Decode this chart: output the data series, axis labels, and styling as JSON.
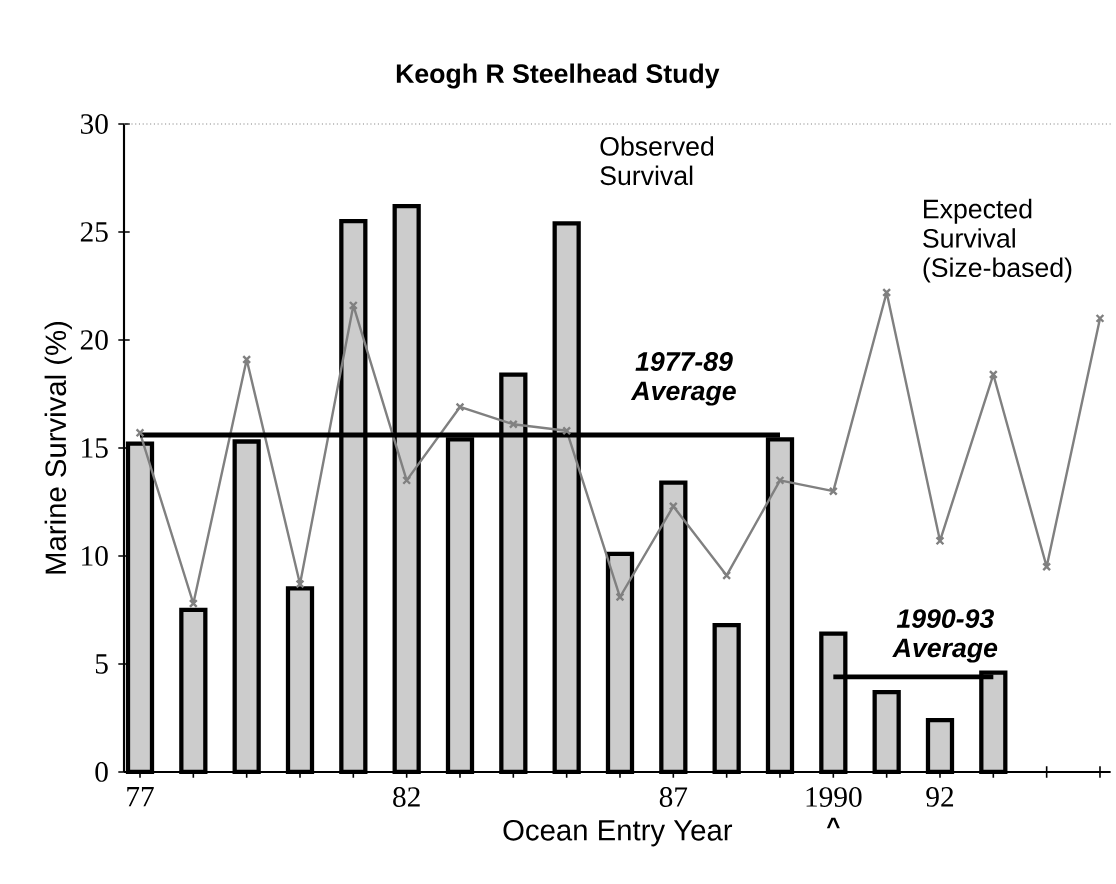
{
  "chart_data": {
    "type": "bar",
    "title": "Keogh R Steelhead Study",
    "xlabel": "Ocean Entry Year",
    "ylabel": "Marine Survival (%)",
    "categories": [
      "77",
      null,
      null,
      null,
      null,
      "82",
      null,
      null,
      null,
      null,
      "87",
      null,
      null,
      "1990",
      null,
      "92",
      null,
      null,
      null
    ],
    "series": [
      {
        "name": "Observed Survival",
        "color": "#cccccc",
        "values": [
          15.2,
          7.5,
          15.3,
          8.5,
          25.5,
          26.2,
          15.4,
          18.4,
          25.4,
          10.1,
          13.4,
          6.8,
          15.4,
          6.4,
          3.7,
          2.4,
          4.6,
          null,
          null
        ]
      },
      {
        "name": "Expected Survival (Size-based)",
        "type": "line",
        "color": "#808080",
        "marker": "cross",
        "values": [
          15.7,
          7.8,
          19.1,
          8.7,
          21.6,
          13.5,
          16.9,
          16.1,
          15.8,
          8.1,
          12.3,
          9.1,
          13.5,
          13.0,
          22.2,
          10.7,
          18.4,
          9.5,
          21.0
        ]
      },
      {
        "name": "1977-89 Average",
        "type": "line",
        "color": "#000000",
        "values": [
          15.6,
          15.6,
          15.6,
          15.6,
          15.6,
          15.6,
          15.6,
          15.6,
          15.6,
          15.6,
          15.6,
          15.6,
          15.6,
          null,
          null,
          null,
          null,
          null,
          null
        ]
      },
      {
        "name": "1990-93 Average",
        "type": "line",
        "color": "#000000",
        "values": [
          null,
          null,
          null,
          null,
          null,
          null,
          null,
          null,
          null,
          null,
          null,
          null,
          null,
          4.4,
          4.4,
          4.4,
          4.4,
          null,
          null
        ]
      }
    ],
    "ylim": [
      0,
      30
    ],
    "yticks": [
      0,
      5,
      10,
      15,
      20,
      25,
      30
    ],
    "annotations": [
      "^"
    ]
  }
}
